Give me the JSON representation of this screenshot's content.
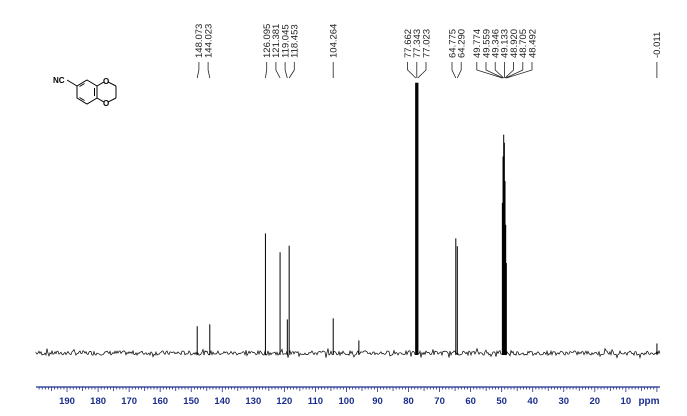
{
  "chart_data": {
    "type": "line",
    "title": "",
    "xlabel": "ppm",
    "ylabel": "",
    "x_reversed": true,
    "xlim": [
      200,
      -1
    ],
    "x_ticks": [
      190,
      180,
      170,
      160,
      150,
      140,
      130,
      120,
      110,
      100,
      90,
      80,
      70,
      60,
      50,
      40,
      30,
      20,
      10
    ],
    "grid": false,
    "legend": "none",
    "peaks": [
      {
        "ppm": 148.073,
        "height": 0.098
      },
      {
        "ppm": 144.023,
        "height": 0.105
      },
      {
        "ppm": 126.095,
        "height": 0.438
      },
      {
        "ppm": 121.381,
        "height": 0.369
      },
      {
        "ppm": 119.045,
        "height": 0.123
      },
      {
        "ppm": 118.453,
        "height": 0.393
      },
      {
        "ppm": 104.264,
        "height": 0.127
      },
      {
        "ppm": 96.0,
        "height": 0.046
      },
      {
        "ppm": 77.662,
        "height": 0.99
      },
      {
        "ppm": 77.343,
        "height": 0.99
      },
      {
        "ppm": 77.023,
        "height": 0.99
      },
      {
        "ppm": 64.775,
        "height": 0.42
      },
      {
        "ppm": 64.29,
        "height": 0.391
      },
      {
        "ppm": 49.774,
        "height": 0.55
      },
      {
        "ppm": 49.559,
        "height": 0.72
      },
      {
        "ppm": 49.346,
        "height": 0.8
      },
      {
        "ppm": 49.133,
        "height": 0.77
      },
      {
        "ppm": 48.92,
        "height": 0.63
      },
      {
        "ppm": 48.705,
        "height": 0.47
      },
      {
        "ppm": 48.492,
        "height": 0.33
      },
      {
        "ppm": -0.011,
        "height": 0.035
      }
    ],
    "peak_labels": [
      "148.073",
      "144.023",
      "126.095",
      "121.381",
      "119.045",
      "118.453",
      "104.264",
      "77.662",
      "77.343",
      "77.023",
      "64.775",
      "64.290",
      "49.774",
      "49.559",
      "49.346",
      "49.133",
      "48.920",
      "48.705",
      "48.492",
      "-0.011"
    ]
  },
  "molecule": {
    "substituent": "NC",
    "atom_top": "O",
    "atom_bottom": "O"
  },
  "colors": {
    "spectrum": "#000000",
    "axis": "#1b2d8c",
    "background": "#ffffff"
  }
}
